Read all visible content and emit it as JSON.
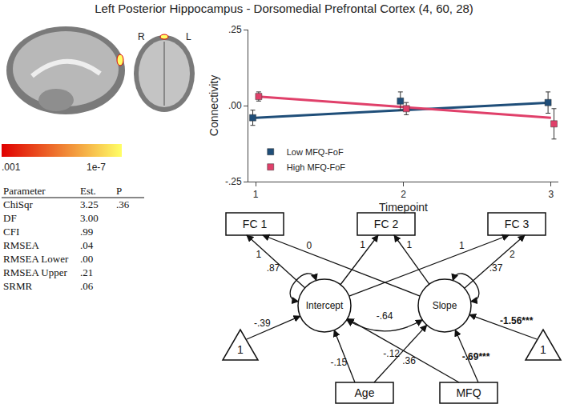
{
  "title": "Left Posterior Hippocampus - Dorsomedial Prefrontal Cortex (4, 60, 28)",
  "brain_views": {
    "left_label": "R",
    "right_label": "L"
  },
  "colorbar": {
    "min_label": ".001",
    "max_label": "1e-7",
    "colors": [
      "#e00000",
      "#ffff66"
    ]
  },
  "chart_data": {
    "type": "line",
    "xlabel": "Timepoint",
    "ylabel": "Connectivity",
    "xlim": [
      0.95,
      3.05
    ],
    "xticks": [
      1,
      2,
      3
    ],
    "ylim": [
      -0.25,
      0.25
    ],
    "yticks": [
      {
        "value": -0.25,
        "label": "-.25"
      },
      {
        "value": 0,
        "label": ".00"
      },
      {
        "value": 0.25,
        "label": ".25"
      }
    ],
    "grid": false,
    "legend": "lower left",
    "series": [
      {
        "name": "Low MFQ-FoF",
        "color": "#1f4e79",
        "marker": "square",
        "x": [
          0.98,
          1.98,
          2.98
        ],
        "values": [
          -0.04,
          0.015,
          0.01
        ],
        "error": [
          0.025,
          0.03,
          0.035
        ],
        "fit_x": [
          1,
          3
        ],
        "fit_values": [
          -0.04,
          0.01
        ]
      },
      {
        "name": "High MFQ-FoF",
        "color": "#e0406a",
        "marker": "square",
        "x": [
          1.02,
          2.02,
          3.02
        ],
        "values": [
          0.03,
          -0.01,
          -0.06
        ],
        "error": [
          0.015,
          0.02,
          0.05
        ],
        "fit_x": [
          1,
          3
        ],
        "fit_values": [
          0.03,
          -0.04
        ]
      }
    ]
  },
  "table": {
    "header": [
      "Parameter",
      "Est.",
      "P"
    ],
    "rows": [
      [
        "ChiSqr",
        "3.25",
        ".36"
      ],
      [
        "DF",
        "3.00"
      ],
      [
        "CFI",
        ".99"
      ],
      [
        "RMSEA",
        ".04"
      ],
      [
        "RMSEA Lower",
        ".00"
      ],
      [
        "RMSEA Upper",
        ".21"
      ],
      [
        "SRMR",
        ".06"
      ]
    ]
  },
  "diagram": {
    "observed": [
      "FC 1",
      "FC 2",
      "FC 3"
    ],
    "latent": [
      "Intercept",
      "Slope"
    ],
    "loadings": [
      [
        "1",
        "1",
        "1"
      ],
      [
        "0",
        "1",
        "2"
      ]
    ],
    "variances": [
      ".87",
      ".37"
    ],
    "covariance": "-.64",
    "constant": "1",
    "means": [
      "-.39",
      "-1.56***"
    ],
    "covariates": [
      "Age",
      "MFQ"
    ],
    "regressions": [
      [
        "-.15",
        "-.12"
      ],
      [
        ".36",
        "-.69***"
      ]
    ]
  }
}
